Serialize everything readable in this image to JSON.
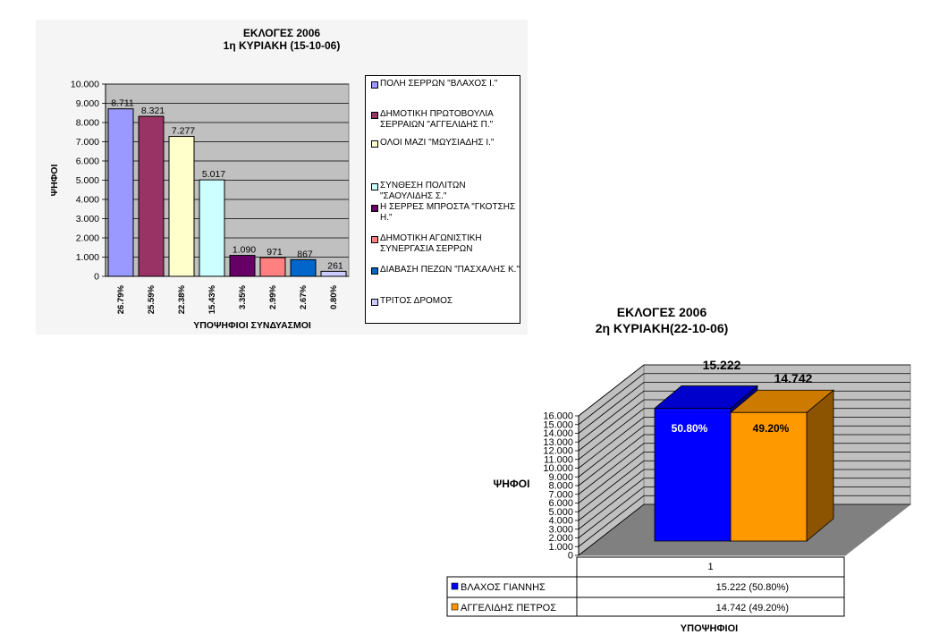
{
  "chart_data": [
    {
      "type": "bar",
      "title": "ΕΚΛΟΓΕΣ 2006",
      "subtitle": "1η ΚΥΡΙΑΚΗ (15-10-06)",
      "ylabel": "ΨΗΦΟΙ",
      "xlabel": "ΥΠΟΨΗΦΙΟΙ ΣΥΝΔΥΑΣΜΟΙ",
      "ylim": [
        0,
        10000
      ],
      "yticks": [
        0,
        1000,
        2000,
        3000,
        4000,
        5000,
        6000,
        7000,
        8000,
        9000,
        10000
      ],
      "ytick_labels": [
        "0",
        "1.000",
        "2.000",
        "3.000",
        "4.000",
        "5.000",
        "6.000",
        "7.000",
        "8.000",
        "9.000",
        "10.000"
      ],
      "grid": true,
      "legend_position": "right",
      "categories": [
        "26.79%",
        "25.59%",
        "22.38%",
        "15.43%",
        "3.35%",
        "2.99%",
        "2.67%",
        "0.80%"
      ],
      "values": [
        8711,
        8321,
        7277,
        5017,
        1090,
        971,
        867,
        261
      ],
      "value_labels": [
        "8.711",
        "8.321",
        "7.277",
        "5.017",
        "1.090",
        "971",
        "867",
        "261"
      ],
      "series_names": [
        "ΠΟΛΗ ΣΕΡΡΩΝ \"ΒΛΑΧΟΣ Ι.\"",
        "ΔΗΜΟΤΙΚΗ ΠΡΩΤΟΒΟΥΛΙΑ ΣΕΡΡΑΙΩΝ \"ΑΓΓΕΛΙΔΗΣ Π.\"",
        "ΟΛΟΙ ΜΑΖΙ \"ΜΩΥΣΙΑΔΗΣ Ι.\"",
        "ΣΥΝΘΕΣΗ ΠΟΛΙΤΩΝ \"ΣΑΟΥΛΙΔΗΣ Σ.\"",
        "Η ΣΕΡΡΕΣ ΜΠΡΟΣΤΑ \"ΓΚΟΤΣΗΣ Η.\"",
        "ΔΗΜΟΤΙΚΗ ΑΓΩΝΙΣΤΙΚΗ ΣΥΝΕΡΓΑΣΙΑ ΣΕΡΡΩΝ",
        "ΔΙΑΒΑΣΗ ΠΕΖΩΝ \"ΠΑΣΧΑΛΗΣ Κ.\"",
        "ΤΡΙΤΟΣ ΔΡΟΜΟΣ"
      ],
      "colors": [
        "#9999ff",
        "#993366",
        "#ffffcc",
        "#ccffff",
        "#660066",
        "#ff8080",
        "#0066cc",
        "#ccccff"
      ]
    },
    {
      "type": "bar",
      "title": "ΕΚΛΟΓΕΣ 2006",
      "subtitle": "2η ΚΥΡΙΑΚΗ(22-10-06)",
      "ylabel": "ΨΗΦΟΙ",
      "xlabel": "ΥΠΟΨΗΦΙΟΙ",
      "ylim": [
        0,
        16000
      ],
      "yticks": [
        0,
        1000,
        2000,
        3000,
        4000,
        5000,
        6000,
        7000,
        8000,
        9000,
        10000,
        11000,
        12000,
        13000,
        14000,
        15000,
        16000
      ],
      "ytick_labels": [
        "0",
        "1.000",
        "2.000",
        "3.000",
        "4.000",
        "5.000",
        "6.000",
        "7.000",
        "8.000",
        "9.000",
        "10.000",
        "11.000",
        "12.000",
        "13.000",
        "14.000",
        "15.000",
        "16.000"
      ],
      "grid": true,
      "legend_position": "bottom table",
      "categories": [
        "1"
      ],
      "series": [
        {
          "name": "ΒΛΑΧΟΣ ΓΙΑΝΝΗΣ",
          "values": [
            15222
          ],
          "value_label": "15.222",
          "percent_label": "50.80%",
          "color": "#0000ff",
          "table_value": "15.222  (50.80%)"
        },
        {
          "name": "ΑΓΓΕΛΙΔΗΣ ΠΕΤΡΟΣ",
          "values": [
            14742
          ],
          "value_label": "14.742",
          "percent_label": "49.20%",
          "color": "#ff9900",
          "table_value": "14.742  (49.20%)"
        }
      ]
    }
  ]
}
